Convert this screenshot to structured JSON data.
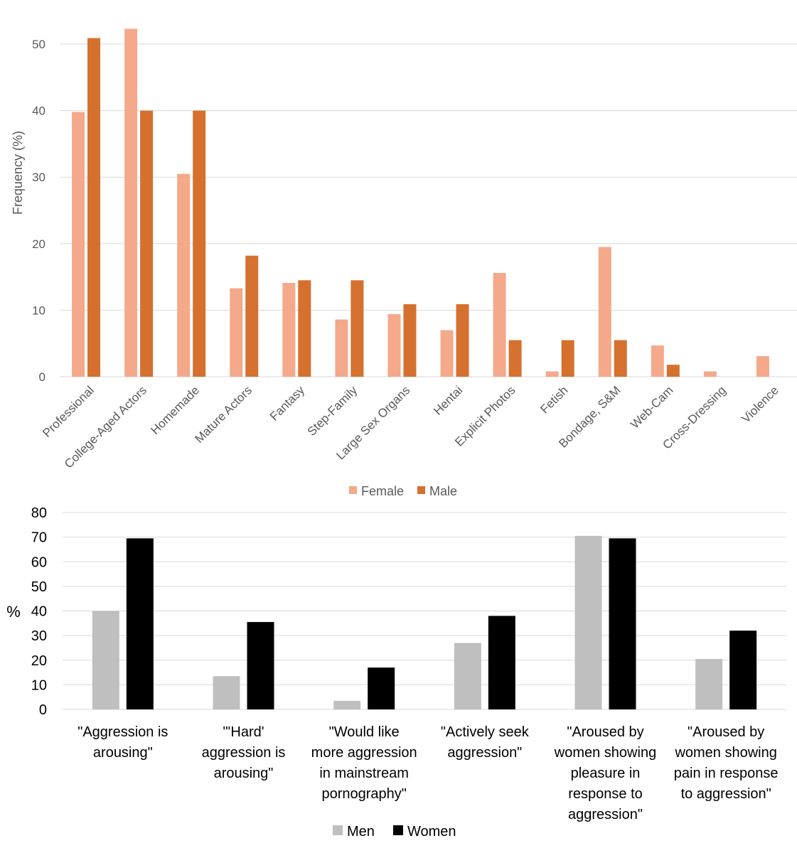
{
  "chart_data": [
    {
      "type": "bar",
      "title": "",
      "xlabel": "",
      "ylabel": "Frequency (%)",
      "ylim": [
        0,
        50
      ],
      "yticks": [
        0,
        10,
        20,
        30,
        40,
        50
      ],
      "grid": true,
      "legend": "bottom",
      "categories": [
        "Professional",
        "College-Aged Actors",
        "Homemade",
        "Mature Actors",
        "Fantasy",
        "Step-Family",
        "Large Sex Organs",
        "Hentai",
        "Explicit Photos",
        "Fetish",
        "Bondage, S&M",
        "Web-Cam",
        "Cross-Dressing",
        "Violence"
      ],
      "series": [
        {
          "name": "Female",
          "color": "#F4A98A",
          "values": [
            39.8,
            52.3,
            30.5,
            13.3,
            14.1,
            8.6,
            9.4,
            7.0,
            15.6,
            0.8,
            19.5,
            4.7,
            0.8,
            3.1
          ]
        },
        {
          "name": "Male",
          "color": "#D6702F",
          "values": [
            50.9,
            40.0,
            40.0,
            18.2,
            14.5,
            14.5,
            10.9,
            10.9,
            5.5,
            5.5,
            5.5,
            1.8,
            0,
            0
          ]
        }
      ]
    },
    {
      "type": "bar",
      "title": "",
      "xlabel": "",
      "ylabel": "%",
      "ylim": [
        0,
        80
      ],
      "yticks": [
        0,
        10,
        20,
        30,
        40,
        50,
        60,
        70,
        80
      ],
      "grid": true,
      "legend": "bottom",
      "categories": [
        [
          "\"Aggression is",
          "arousing\""
        ],
        [
          "\"'Hard'",
          "aggression is",
          "arousing\""
        ],
        [
          "\"Would like",
          "more aggression",
          "in mainstream",
          "pornography\""
        ],
        [
          "\"Actively seek",
          "aggression\""
        ],
        [
          "\"Aroused by",
          "women showing",
          "pleasure in",
          "response to",
          "aggression\""
        ],
        [
          "\"Aroused by",
          "women showing",
          "pain in response",
          "to aggression\""
        ]
      ],
      "series": [
        {
          "name": "Men",
          "color": "#BFBFBF",
          "values": [
            40.0,
            13.5,
            3.5,
            27.0,
            70.5,
            20.5
          ]
        },
        {
          "name": "Women",
          "color": "#000000",
          "values": [
            69.5,
            35.5,
            17.0,
            38.0,
            69.5,
            32.0
          ]
        }
      ]
    }
  ]
}
